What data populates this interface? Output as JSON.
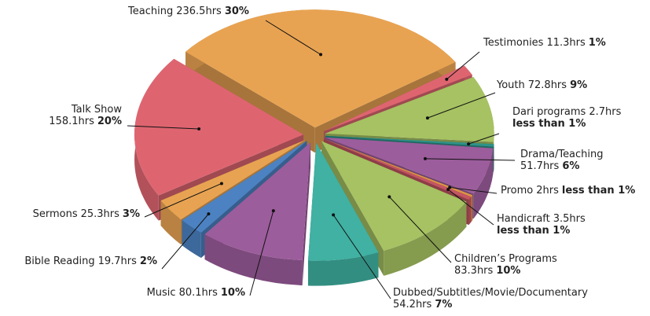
{
  "chart_data": {
    "type": "pie",
    "categories": [
      "Teaching",
      "Testimonies",
      "Youth",
      "Dari programs",
      "Drama/Teaching",
      "Promo",
      "Handicraft",
      "Children’s Programs",
      "Dubbed/Subtitles/Movie/Documentary",
      "Music",
      "Bible Reading",
      "Sermons",
      "Talk Show"
    ],
    "values": [
      236.5,
      11.3,
      72.8,
      2.7,
      51.7,
      2,
      3.5,
      83.3,
      54.2,
      80.1,
      19.7,
      25.3,
      158.1
    ],
    "value_labels": [
      "236.5hrs",
      "11.3hrs",
      "72.8hrs",
      "2.7hrs",
      "51.7hrs",
      "2hrs",
      "3.5hrs",
      "83.3hrs",
      "54.2hrs",
      "80.1hrs",
      "19.7hrs",
      "25.3hrs",
      "158.1hrs"
    ],
    "percent_labels": [
      "30%",
      "1%",
      "9%",
      "less than 1%",
      "6%",
      "less than 1%",
      "less than 1%",
      "10%",
      "7%",
      "10%",
      "2%",
      "3%",
      "20%"
    ],
    "colors": [
      "#e8a352",
      "#de6570",
      "#a6c262",
      "#2e938a",
      "#9c5d9c",
      "#dd9645",
      "#c45563",
      "#a6c262",
      "#40b1a2",
      "#9c5d9c",
      "#4c82c2",
      "#e8a352",
      "#de6570"
    ]
  }
}
